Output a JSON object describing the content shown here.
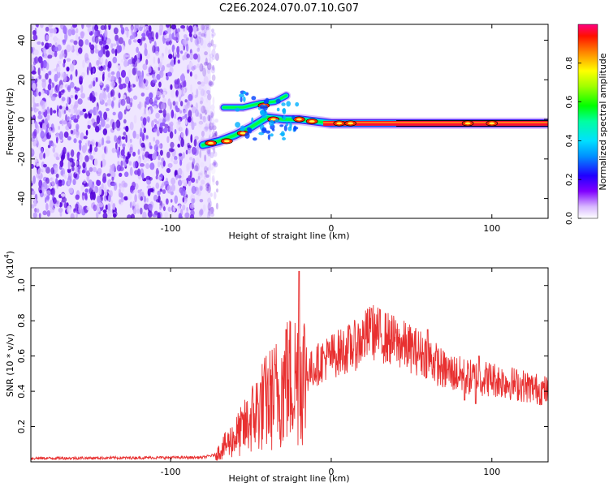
{
  "title": "C2E6.2024.070.07.10.G07",
  "chart_data": [
    {
      "type": "heatmap",
      "name": "spectrogram",
      "xlabel": "Height of straight line (km)",
      "ylabel": "Frequency (Hz)",
      "xlim": [
        -187,
        135
      ],
      "ylim": [
        -50,
        48
      ],
      "xticks": [
        -100,
        0,
        100
      ],
      "yticks": [
        -40,
        -20,
        0,
        20,
        40
      ],
      "noise_region_x": [
        -187,
        -75
      ],
      "signal_track": [
        {
          "x": -80,
          "y": -13
        },
        {
          "x": -70,
          "y": -11
        },
        {
          "x": -60,
          "y": -8
        },
        {
          "x": -50,
          "y": -4
        },
        {
          "x": -40,
          "y": 1
        },
        {
          "x": -30,
          "y": 0
        },
        {
          "x": -20,
          "y": 0
        },
        {
          "x": -10,
          "y": -1
        },
        {
          "x": 0,
          "y": -2
        },
        {
          "x": 20,
          "y": -2
        },
        {
          "x": 60,
          "y": -2
        },
        {
          "x": 100,
          "y": -2
        },
        {
          "x": 135,
          "y": -2
        }
      ],
      "upper_branch": [
        {
          "x": -67,
          "y": 6
        },
        {
          "x": -55,
          "y": 6
        },
        {
          "x": -45,
          "y": 8
        },
        {
          "x": -35,
          "y": 9
        },
        {
          "x": -28,
          "y": 12
        }
      ],
      "colorbar": {
        "label": "Normalized spectral amplitude",
        "ticks": [
          0.0,
          0.2,
          0.4,
          0.6,
          0.8
        ],
        "range": [
          0,
          1
        ],
        "colors": [
          "#ffffff",
          "#c080ff",
          "#6000e0",
          "#0000ff",
          "#00c0ff",
          "#00ff80",
          "#00ff00",
          "#b0ff00",
          "#ffff00",
          "#ff8000",
          "#ff0000",
          "#ff00a0"
        ]
      }
    },
    {
      "type": "line",
      "name": "snr",
      "xlabel": "Height of straight line (km)",
      "ylabel": "SNR (10 * v/v)",
      "y_multiplier": "(x10",
      "y_multiplier_exp": "4",
      "y_multiplier_close": ")",
      "xlim": [
        -187,
        135
      ],
      "ylim": [
        0,
        1.1
      ],
      "xticks": [
        -100,
        0,
        100
      ],
      "yticks": [
        0.2,
        0.4,
        0.6,
        0.8,
        1.0
      ],
      "color": "#e83030",
      "envelope": [
        {
          "x": -187,
          "y": 0.02
        },
        {
          "x": -80,
          "y": 0.025
        },
        {
          "x": -72,
          "y": 0.04
        },
        {
          "x": -65,
          "y": 0.1
        },
        {
          "x": -55,
          "y": 0.18
        },
        {
          "x": -45,
          "y": 0.3
        },
        {
          "x": -35,
          "y": 0.38
        },
        {
          "x": -28,
          "y": 0.45
        },
        {
          "x": -20,
          "y": 0.5
        },
        {
          "x": -15,
          "y": 0.5
        },
        {
          "x": -5,
          "y": 0.58
        },
        {
          "x": 5,
          "y": 0.62
        },
        {
          "x": 15,
          "y": 0.66
        },
        {
          "x": 25,
          "y": 0.74
        },
        {
          "x": 35,
          "y": 0.7
        },
        {
          "x": 45,
          "y": 0.66
        },
        {
          "x": 60,
          "y": 0.6
        },
        {
          "x": 70,
          "y": 0.52
        },
        {
          "x": 85,
          "y": 0.48
        },
        {
          "x": 100,
          "y": 0.47
        },
        {
          "x": 120,
          "y": 0.43
        },
        {
          "x": 135,
          "y": 0.4
        }
      ],
      "spikes": [
        {
          "x": -20,
          "y": 1.08
        },
        {
          "x": 25,
          "y": 0.87
        },
        {
          "x": -28,
          "y": 0.75
        },
        {
          "x": -35,
          "y": 0.55
        },
        {
          "x": 60,
          "y": 0.75
        },
        {
          "x": 92,
          "y": 0.6
        },
        {
          "x": 83,
          "y": 0.35
        },
        {
          "x": 90,
          "y": 0.33
        }
      ]
    }
  ]
}
